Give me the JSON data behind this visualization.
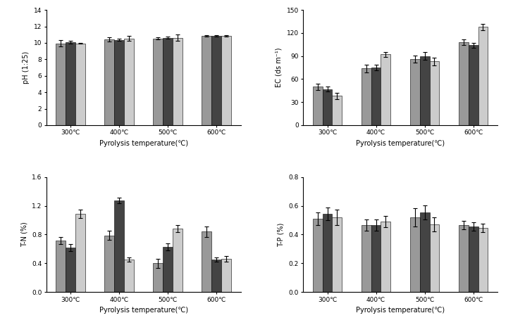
{
  "temperatures": [
    "300℃",
    "400℃",
    "500℃",
    "600℃"
  ],
  "xlabel": "Pyrolysis temperature(℃)",
  "bar_colors": [
    "#999999",
    "#444444",
    "#cccccc"
  ],
  "bar_width": 0.2,
  "pH": {
    "ylabel": "pH (1:25)",
    "ylim": [
      0,
      14
    ],
    "yticks": [
      0,
      2,
      4,
      6,
      8,
      10,
      12,
      14
    ],
    "values": [
      [
        9.95,
        10.1,
        9.95
      ],
      [
        10.42,
        10.35,
        10.55
      ],
      [
        10.55,
        10.62,
        10.62
      ],
      [
        10.82,
        10.82,
        10.85
      ]
    ],
    "errors": [
      [
        0.35,
        0.15,
        0.08
      ],
      [
        0.22,
        0.12,
        0.28
      ],
      [
        0.12,
        0.12,
        0.38
      ],
      [
        0.08,
        0.08,
        0.12
      ]
    ]
  },
  "EC": {
    "ylabel": "EC (ds m⁻¹)",
    "ylim": [
      0,
      150
    ],
    "yticks": [
      0,
      30,
      60,
      90,
      120,
      150
    ],
    "values": [
      [
        50,
        47,
        38
      ],
      [
        74,
        75,
        92
      ],
      [
        86,
        90,
        83
      ],
      [
        108,
        104,
        128
      ]
    ],
    "errors": [
      [
        4,
        3,
        4
      ],
      [
        5,
        4,
        3
      ],
      [
        5,
        5,
        5
      ],
      [
        4,
        3,
        4
      ]
    ]
  },
  "TN": {
    "ylabel": "T-N (%)",
    "ylim": [
      0,
      1.6
    ],
    "yticks": [
      0,
      0.4,
      0.8,
      1.2,
      1.6
    ],
    "values": [
      [
        0.72,
        0.62,
        1.09
      ],
      [
        0.79,
        1.27,
        0.45
      ],
      [
        0.4,
        0.63,
        0.88
      ],
      [
        0.84,
        0.45,
        0.46
      ]
    ],
    "errors": [
      [
        0.05,
        0.05,
        0.06
      ],
      [
        0.06,
        0.04,
        0.03
      ],
      [
        0.06,
        0.05,
        0.05
      ],
      [
        0.07,
        0.03,
        0.04
      ]
    ]
  },
  "TP": {
    "ylabel": "T-P (%)",
    "ylim": [
      0,
      0.8
    ],
    "yticks": [
      0,
      0.2,
      0.4,
      0.6,
      0.8
    ],
    "values": [
      [
        0.51,
        0.545,
        0.52
      ],
      [
        0.465,
        0.465,
        0.49
      ],
      [
        0.52,
        0.555,
        0.47
      ],
      [
        0.465,
        0.455,
        0.445
      ]
    ],
    "errors": [
      [
        0.045,
        0.045,
        0.055
      ],
      [
        0.04,
        0.04,
        0.04
      ],
      [
        0.065,
        0.05,
        0.05
      ],
      [
        0.03,
        0.03,
        0.03
      ]
    ]
  }
}
